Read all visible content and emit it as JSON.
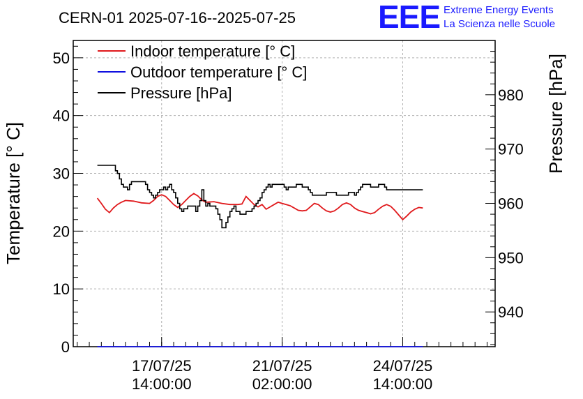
{
  "title": "CERN-01 2025-07-16--2025-07-25",
  "logo": {
    "mark": "EEE",
    "line1": "Extreme Energy Events",
    "line2": "La Scienza nelle Scuole",
    "color": "#1a1aff"
  },
  "chart_data": {
    "type": "line",
    "title": "CERN-01 2025-07-16--2025-07-25",
    "xlabel": "",
    "ylabel": "Temperature [° C]",
    "y2label": "Pressure [hPa]",
    "ylim": [
      0,
      53
    ],
    "y2lim": [
      933.6,
      990
    ],
    "grid": true,
    "legend_position": "top-left",
    "x_range_hours": [
      0,
      210
    ],
    "x_ticks": [
      {
        "hour": 44,
        "line1": "17/07/25",
        "line2": "14:00:00"
      },
      {
        "hour": 104,
        "line1": "21/07/25",
        "line2": "02:00:00"
      },
      {
        "hour": 164,
        "line1": "24/07/25",
        "line2": "14:00:00"
      }
    ],
    "y_ticks": [
      0,
      10,
      20,
      30,
      40,
      50
    ],
    "y2_ticks": [
      940,
      950,
      960,
      970,
      980
    ],
    "series": [
      {
        "name": "Indoor temperature [° C]",
        "axis": "left",
        "color": "#e0181b",
        "points": [
          [
            12,
            25.7
          ],
          [
            14,
            24.8
          ],
          [
            16,
            23.8
          ],
          [
            18,
            23.2
          ],
          [
            20,
            24.0
          ],
          [
            22,
            24.6
          ],
          [
            24,
            25.0
          ],
          [
            26,
            25.3
          ],
          [
            30,
            25.2
          ],
          [
            34,
            24.9
          ],
          [
            38,
            24.8
          ],
          [
            40,
            25.3
          ],
          [
            42,
            26.0
          ],
          [
            44,
            26.3
          ],
          [
            46,
            26.0
          ],
          [
            48,
            25.3
          ],
          [
            50,
            24.6
          ],
          [
            52,
            24.1
          ],
          [
            54,
            24.6
          ],
          [
            56,
            25.3
          ],
          [
            58,
            26.0
          ],
          [
            60,
            26.5
          ],
          [
            62,
            26.1
          ],
          [
            64,
            25.4
          ],
          [
            66,
            25.0
          ],
          [
            70,
            25.1
          ],
          [
            74,
            24.8
          ],
          [
            78,
            24.6
          ],
          [
            82,
            24.6
          ],
          [
            84,
            24.7
          ],
          [
            86,
            26.0
          ],
          [
            88,
            25.3
          ],
          [
            90,
            24.6
          ],
          [
            92,
            24.2
          ],
          [
            94,
            24.6
          ],
          [
            96,
            23.8
          ],
          [
            98,
            24.2
          ],
          [
            100,
            24.6
          ],
          [
            102,
            25.0
          ],
          [
            104,
            24.8
          ],
          [
            106,
            24.6
          ],
          [
            108,
            24.4
          ],
          [
            110,
            24.0
          ],
          [
            112,
            23.6
          ],
          [
            114,
            23.5
          ],
          [
            116,
            23.6
          ],
          [
            118,
            24.2
          ],
          [
            120,
            24.8
          ],
          [
            122,
            24.6
          ],
          [
            124,
            24.0
          ],
          [
            126,
            23.5
          ],
          [
            128,
            23.3
          ],
          [
            130,
            23.5
          ],
          [
            132,
            24.0
          ],
          [
            134,
            24.6
          ],
          [
            136,
            24.9
          ],
          [
            138,
            24.6
          ],
          [
            140,
            24.0
          ],
          [
            142,
            23.6
          ],
          [
            144,
            23.4
          ],
          [
            146,
            23.2
          ],
          [
            148,
            23.0
          ],
          [
            150,
            23.2
          ],
          [
            152,
            23.8
          ],
          [
            154,
            24.3
          ],
          [
            156,
            24.6
          ],
          [
            158,
            24.3
          ],
          [
            160,
            23.6
          ],
          [
            162,
            22.8
          ],
          [
            164,
            22.0
          ],
          [
            166,
            22.6
          ],
          [
            168,
            23.3
          ],
          [
            170,
            23.8
          ],
          [
            172,
            24.1
          ],
          [
            174,
            24.0
          ]
        ]
      },
      {
        "name": "Outdoor temperature [° C]",
        "axis": "left",
        "color": "#1010e0",
        "points": [
          [
            12,
            0
          ],
          [
            174,
            0
          ]
        ]
      },
      {
        "name": "Pressure [hPa]",
        "axis": "right",
        "color": "#000000",
        "step": true,
        "points": [
          [
            12,
            967.0
          ],
          [
            20,
            967.0
          ],
          [
            21,
            966.0
          ],
          [
            22,
            965.5
          ],
          [
            23,
            964.5
          ],
          [
            24,
            963.5
          ],
          [
            25,
            963.0
          ],
          [
            26,
            963.0
          ],
          [
            27,
            962.5
          ],
          [
            28,
            963.5
          ],
          [
            29,
            964.0
          ],
          [
            34,
            964.0
          ],
          [
            35,
            964.0
          ],
          [
            36,
            963.5
          ],
          [
            37,
            962.5
          ],
          [
            38,
            962.0
          ],
          [
            39,
            961.5
          ],
          [
            40,
            961.0
          ],
          [
            41,
            961.5
          ],
          [
            42,
            962.0
          ],
          [
            43,
            962.5
          ],
          [
            44,
            962.5
          ],
          [
            45,
            963.0
          ],
          [
            46,
            962.5
          ],
          [
            47,
            963.0
          ],
          [
            48,
            963.5
          ],
          [
            49,
            962.5
          ],
          [
            50,
            962.0
          ],
          [
            51,
            961.0
          ],
          [
            52,
            960.0
          ],
          [
            53,
            959.0
          ],
          [
            54,
            958.5
          ],
          [
            55,
            959.0
          ],
          [
            56,
            959.0
          ],
          [
            57,
            959.5
          ],
          [
            60,
            959.5
          ],
          [
            61,
            958.5
          ],
          [
            62,
            959.5
          ],
          [
            63,
            960.5
          ],
          [
            64,
            962.5
          ],
          [
            65,
            960.5
          ],
          [
            66,
            959.5
          ],
          [
            67,
            960.0
          ],
          [
            68,
            959.5
          ],
          [
            70,
            959.5
          ],
          [
            71,
            959.0
          ],
          [
            72,
            958.0
          ],
          [
            73,
            957.0
          ],
          [
            74,
            955.5
          ],
          [
            75,
            955.5
          ],
          [
            76,
            956.5
          ],
          [
            77,
            957.5
          ],
          [
            78,
            958.5
          ],
          [
            79,
            959.0
          ],
          [
            80,
            959.5
          ],
          [
            81,
            958.5
          ],
          [
            82,
            958.5
          ],
          [
            83,
            958.0
          ],
          [
            84,
            958.0
          ],
          [
            85,
            958.0
          ],
          [
            86,
            958.5
          ],
          [
            88,
            958.5
          ],
          [
            89,
            959.0
          ],
          [
            90,
            959.5
          ],
          [
            91,
            960.0
          ],
          [
            92,
            960.5
          ],
          [
            93,
            961.0
          ],
          [
            94,
            962.0
          ],
          [
            95,
            962.5
          ],
          [
            96,
            963.0
          ],
          [
            97,
            963.5
          ],
          [
            98,
            963.0
          ],
          [
            99,
            963.5
          ],
          [
            104,
            963.5
          ],
          [
            105,
            963.0
          ],
          [
            106,
            962.5
          ],
          [
            107,
            963.0
          ],
          [
            110,
            963.0
          ],
          [
            111,
            963.5
          ],
          [
            113,
            963.5
          ],
          [
            114,
            963.0
          ],
          [
            116,
            963.0
          ],
          [
            117,
            962.5
          ],
          [
            118,
            962.0
          ],
          [
            119,
            961.5
          ],
          [
            120,
            961.5
          ],
          [
            125,
            961.5
          ],
          [
            126,
            962.0
          ],
          [
            130,
            962.0
          ],
          [
            131,
            961.5
          ],
          [
            136,
            961.5
          ],
          [
            137,
            962.0
          ],
          [
            139,
            962.0
          ],
          [
            140,
            961.5
          ],
          [
            141,
            962.0
          ],
          [
            142,
            962.5
          ],
          [
            143,
            963.0
          ],
          [
            144,
            963.5
          ],
          [
            147,
            963.5
          ],
          [
            148,
            963.0
          ],
          [
            151,
            963.0
          ],
          [
            152,
            963.5
          ],
          [
            154,
            963.5
          ],
          [
            155,
            963.0
          ],
          [
            156,
            962.5
          ],
          [
            174,
            962.5
          ]
        ]
      }
    ]
  }
}
